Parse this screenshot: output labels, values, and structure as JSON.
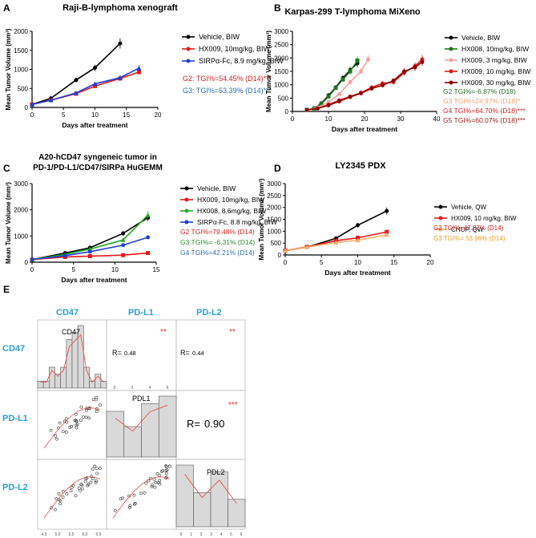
{
  "chart_data": [
    {
      "panel": "A",
      "type": "line",
      "title": "Raji-B-lymphoma xenograft",
      "xlabel": "Days after treatment",
      "ylabel": "Mean Tumor Volume (mm³)",
      "xlim": [
        0,
        20
      ],
      "ylim": [
        0,
        2000
      ],
      "xticks": [
        0,
        5,
        10,
        15,
        20
      ],
      "yticks": [
        0,
        500,
        1000,
        1500,
        2000
      ],
      "series": [
        {
          "name": "Vehicle, BIW",
          "color": "#000000",
          "x": [
            0,
            3,
            7,
            10,
            14
          ],
          "y": [
            80,
            240,
            720,
            1040,
            1680
          ]
        },
        {
          "name": "HX009, 10mg/kg, BIW",
          "color": "#e31a1c",
          "x": [
            0,
            3,
            7,
            10,
            14,
            17
          ],
          "y": [
            80,
            190,
            360,
            560,
            760,
            930
          ]
        },
        {
          "name": "SIRPα-Fc, 8.9 mg/kg, BIW",
          "color": "#1f3fd1",
          "x": [
            0,
            3,
            7,
            10,
            14,
            17
          ],
          "y": [
            80,
            190,
            380,
            620,
            780,
            1030
          ]
        }
      ],
      "annotations": [
        {
          "text": "G2: TGI%=54.45% (D14)***",
          "color": "#d42020"
        },
        {
          "text": "G3: TGI%=53.39% (D14)***",
          "color": "#2a6fb5"
        }
      ]
    },
    {
      "panel": "B",
      "type": "line",
      "title": "Karpas-299 T-lymphoma MiXeno",
      "xlabel": "Days after treatment",
      "ylabel": "Mean Tumor Volume (mm³)",
      "xlim": [
        0,
        40
      ],
      "ylim": [
        0,
        3000
      ],
      "xticks": [
        0,
        10,
        20,
        30,
        40
      ],
      "yticks": [
        0,
        500,
        1000,
        1500,
        2000,
        2500,
        3000
      ],
      "series": [
        {
          "name": "Vehicle, BIW",
          "color": "#000000",
          "x": [
            4,
            6,
            8,
            10,
            12,
            14,
            16,
            18
          ],
          "y": [
            60,
            120,
            300,
            600,
            900,
            1250,
            1550,
            1800
          ]
        },
        {
          "name": "HX008, 10mg/kg, BIW",
          "color": "#1a7a1a",
          "x": [
            4,
            6,
            8,
            10,
            12,
            14,
            16,
            18
          ],
          "y": [
            60,
            110,
            280,
            560,
            880,
            1200,
            1500,
            1900
          ]
        },
        {
          "name": "HX009, 3 mg/kg, BIW",
          "color": "#f4a0a0",
          "x": [
            4,
            7,
            10,
            13,
            16,
            19,
            21
          ],
          "y": [
            60,
            150,
            350,
            650,
            1100,
            1500,
            1950
          ]
        },
        {
          "name": "HX009, 10 mg/kg, BIW",
          "color": "#e31a1c",
          "x": [
            4,
            7,
            10,
            13,
            16,
            19,
            22,
            25,
            28,
            31,
            34,
            36
          ],
          "y": [
            60,
            120,
            250,
            420,
            560,
            700,
            900,
            1050,
            1100,
            1450,
            1700,
            1950
          ]
        },
        {
          "name": "HX009, 30 mg/kg, BIW",
          "color": "#8b0000",
          "x": [
            4,
            7,
            10,
            13,
            16,
            19,
            22,
            25,
            28,
            31,
            34,
            36
          ],
          "y": [
            60,
            110,
            230,
            380,
            540,
            680,
            860,
            980,
            1150,
            1500,
            1650,
            1850
          ]
        }
      ],
      "annotations": [
        {
          "text": "G2 TGI%=-6.87% (D18)",
          "color": "#2a6a2a"
        },
        {
          "text": "G3 TGI%=24.97% (D18)*",
          "color": "#f0a070"
        },
        {
          "text": "G4 TGI%=64.70% (D18)***",
          "color": "#d42020"
        },
        {
          "text": "G5 TGI%=60.07% (D18)***",
          "color": "#a01818"
        }
      ]
    },
    {
      "panel": "C",
      "type": "line",
      "title_lines": [
        "A20-hCD47 syngeneic tumor in",
        "PD-1/PD-L1/CD47/SIRPa HuGEMM"
      ],
      "xlabel": "Days after treatment",
      "ylabel": "Mean Tumor Volume (mm³)",
      "xlim": [
        0,
        15
      ],
      "ylim": [
        0,
        3000
      ],
      "xticks": [
        0,
        5,
        10,
        15
      ],
      "yticks": [
        0,
        1000,
        2000,
        3000
      ],
      "series": [
        {
          "name": "Vehicle, BIW",
          "color": "#000000",
          "x": [
            0,
            4,
            7,
            11,
            14
          ],
          "y": [
            100,
            350,
            550,
            1100,
            1700
          ]
        },
        {
          "name": "HX009, 10mg/kg, BIW",
          "color": "#e31a1c",
          "x": [
            0,
            4,
            7,
            11,
            14
          ],
          "y": [
            100,
            200,
            230,
            270,
            350
          ]
        },
        {
          "name": "HX008, 8.6mg/kg, BIW",
          "color": "#22aa22",
          "x": [
            0,
            4,
            7,
            11,
            14
          ],
          "y": [
            100,
            300,
            500,
            850,
            1800
          ]
        },
        {
          "name": "SIRPα-Fc, 8.8 mg/kg, BIW",
          "color": "#1f3fd1",
          "x": [
            0,
            4,
            7,
            11,
            14
          ],
          "y": [
            100,
            250,
            400,
            650,
            950
          ]
        }
      ],
      "annotations": [
        {
          "text": "G2 TGI%=79.48% (D14)",
          "color": "#d42020"
        },
        {
          "text": "G3 TGI%= -6.31% (D14)",
          "color": "#2a8a2a"
        },
        {
          "text": "G4 TGI%=42.21% (D14)",
          "color": "#2a6fb5"
        }
      ]
    },
    {
      "panel": "D",
      "type": "line",
      "title": "LY2345 PDX",
      "xlabel": "Days after treatment",
      "ylabel": "Mean Tumor Volume (mm³)",
      "xlim": [
        0,
        20
      ],
      "ylim": [
        0,
        3000
      ],
      "xticks": [
        0,
        5,
        10,
        15,
        20
      ],
      "yticks": [
        0,
        500,
        1000,
        1500,
        2000,
        2500,
        3000
      ],
      "series": [
        {
          "name": "Vehicle, QW",
          "color": "#000000",
          "x": [
            0,
            3,
            7,
            10,
            14
          ],
          "y": [
            180,
            330,
            700,
            1250,
            1850
          ]
        },
        {
          "name": "HX009, 10 mg/kg, BIW",
          "color": "#e31a1c",
          "x": [
            0,
            3,
            7,
            10,
            14
          ],
          "y": [
            180,
            340,
            600,
            720,
            970
          ]
        },
        {
          "name": "CHOP, QW",
          "color": "#f5b070",
          "x": [
            0,
            3,
            7,
            10,
            14
          ],
          "y": [
            180,
            330,
            520,
            620,
            850
          ]
        }
      ],
      "annotations": [
        {
          "text": "G2 TGI%=47.87% (D14)",
          "color": "#d42020"
        },
        {
          "text": "G3 TGI%= 53.96% (D14)",
          "color": "#e8a020"
        }
      ]
    },
    {
      "panel": "E",
      "type": "scatter-matrix",
      "variables": [
        "CD47",
        "PD-L1",
        "PD-L2"
      ],
      "diag_labels": [
        "CD47",
        "PDL1",
        "PDL2"
      ],
      "hist_cd47": [
        1,
        1,
        3,
        2,
        3,
        7,
        8,
        9,
        3,
        1,
        2,
        1
      ],
      "hist_pdl1": [
        6,
        4,
        7,
        8
      ],
      "hist_pdl2": [
        9,
        5,
        8,
        4
      ],
      "correlations": [
        {
          "pair": "CD47-PD-L1",
          "r": "0.48",
          "stars": "**"
        },
        {
          "pair": "CD47-PD-L2",
          "r": "0.44",
          "stars": "**"
        },
        {
          "pair": "PD-L1-PD-L2",
          "r": "0.90",
          "stars": "***"
        }
      ],
      "r_label": "R=",
      "axis_ticks_cd47": [
        "4.5",
        "5.0",
        "5.5",
        "6.0",
        "6.5"
      ],
      "axis_ticks_pdl1": [
        "0",
        "2",
        "4",
        "6"
      ],
      "axis_ticks_pdl2": [
        "0",
        "1",
        "2",
        "3",
        "4",
        "5",
        "6"
      ]
    }
  ],
  "labels": {
    "A": "A",
    "B": "B",
    "C": "C",
    "D": "D",
    "E": "E"
  }
}
